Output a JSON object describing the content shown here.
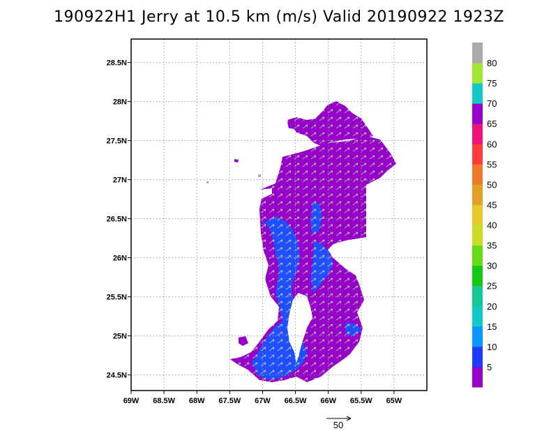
{
  "title": "190922H1 Jerry at 10.5 km (m/s) Valid 20190922 1923Z",
  "map": {
    "lon_range": [
      -69,
      -64.5
    ],
    "lat_range": [
      24.3,
      28.8
    ],
    "lon_ticks": [
      "69W",
      "68.5W",
      "68W",
      "67.5W",
      "67W",
      "66.5W",
      "66W",
      "65.5W",
      "65W"
    ],
    "lat_ticks": [
      "24.5N",
      "25N",
      "25.5N",
      "26N",
      "26.5N",
      "27N",
      "27.5N",
      "28N",
      "28.5N"
    ],
    "grid": true
  },
  "colorbar": {
    "labels": [
      "5",
      "10",
      "15",
      "20",
      "25",
      "30",
      "35",
      "40",
      "45",
      "50",
      "55",
      "60",
      "65",
      "70",
      "75",
      "80"
    ],
    "colors": [
      "#9600c8",
      "#1e3cff",
      "#0a96ff",
      "#12c8c8",
      "#14c896",
      "#14c814",
      "#64dc14",
      "#c8dc28",
      "#e6c828",
      "#e6a028",
      "#f07828",
      "#ff3c3c",
      "#f0147a",
      "#9600c8",
      "#12c8c8",
      "#a0e632",
      "#aaaaaa"
    ]
  },
  "reference_vector": {
    "label": "50"
  },
  "colors": {
    "field_main": "#9600c8",
    "field_blue": "#1e50ff",
    "arrows": "#b4b4b4"
  }
}
